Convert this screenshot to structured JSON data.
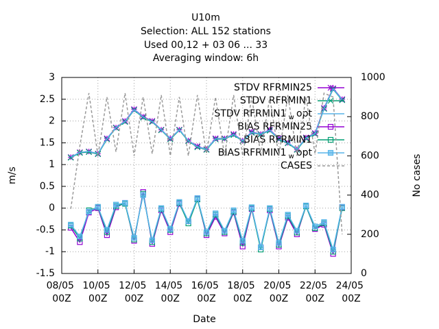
{
  "chart_data": {
    "type": "line",
    "title": [
      "U10m",
      "Selection: ALL    152 stations",
      "Used  00,12  + 03 06 ... 33",
      "Averaging window:  6h"
    ],
    "xlabel": "Date",
    "ylabel": "m/s",
    "y2label": "No cases",
    "xlim": [
      8,
      24
    ],
    "xticks": [
      {
        "value": 8,
        "label": "08/05 00Z"
      },
      {
        "value": 10,
        "label": "10/05 00Z"
      },
      {
        "value": 12,
        "label": "12/05 00Z"
      },
      {
        "value": 14,
        "label": "14/05 00Z"
      },
      {
        "value": 16,
        "label": "16/05 00Z"
      },
      {
        "value": 18,
        "label": "18/05 00Z"
      },
      {
        "value": 20,
        "label": "20/05 00Z"
      },
      {
        "value": 22,
        "label": "22/05 00Z"
      },
      {
        "value": 24,
        "label": "24/05 00Z"
      }
    ],
    "ylim": [
      -1.5,
      3
    ],
    "yticks": [
      -1.5,
      -1,
      -0.5,
      0,
      0.5,
      1,
      1.5,
      2,
      2.5,
      3
    ],
    "y2lim": [
      0,
      1000
    ],
    "y2ticks": [
      0,
      200,
      400,
      600,
      800,
      1000
    ],
    "grid": true,
    "legend": "top-right",
    "x": [
      8.5,
      9,
      9.5,
      10,
      10.5,
      11,
      11.5,
      12,
      12.5,
      13,
      13.5,
      14,
      14.5,
      15,
      15.5,
      16,
      16.5,
      17,
      17.5,
      18,
      18.5,
      19,
      19.5,
      20,
      20.5,
      21,
      21.5,
      22,
      22.5,
      23,
      23.5
    ],
    "series": [
      {
        "name": "STDV RFRMIN25",
        "color": "#9400d3",
        "marker": "star",
        "values": [
          1.17,
          1.28,
          1.3,
          1.25,
          1.6,
          1.85,
          2.0,
          2.27,
          2.1,
          2.0,
          1.8,
          1.6,
          1.8,
          1.55,
          1.42,
          1.35,
          1.6,
          1.6,
          1.7,
          1.55,
          1.75,
          1.7,
          1.8,
          1.6,
          1.5,
          1.35,
          1.62,
          1.72,
          2.3,
          2.75,
          2.5
        ]
      },
      {
        "name": "STDV RFRMIN1",
        "color": "#009e73",
        "marker": "cross",
        "values": [
          1.16,
          1.27,
          1.29,
          1.24,
          1.58,
          1.84,
          1.98,
          2.25,
          2.08,
          1.98,
          1.79,
          1.58,
          1.79,
          1.54,
          1.4,
          1.34,
          1.58,
          1.59,
          1.68,
          1.54,
          1.73,
          1.69,
          1.78,
          1.58,
          1.49,
          1.34,
          1.6,
          1.7,
          2.28,
          2.73,
          2.48
        ]
      },
      {
        "name": "STDV RFRMIN1 w opt",
        "color": "#56b4e9",
        "marker": "none",
        "values": [
          1.17,
          1.28,
          1.3,
          1.25,
          1.59,
          1.85,
          1.99,
          2.26,
          2.09,
          1.99,
          1.8,
          1.59,
          1.8,
          1.55,
          1.41,
          1.35,
          1.59,
          1.6,
          1.69,
          1.55,
          1.74,
          1.7,
          1.79,
          1.59,
          1.5,
          1.35,
          1.61,
          1.71,
          2.29,
          2.74,
          2.49
        ]
      },
      {
        "name": "BIAS RFRMIN25",
        "color": "#9400d3",
        "marker": "square",
        "values": [
          -0.45,
          -0.78,
          -0.1,
          0.0,
          -0.62,
          0.02,
          0.12,
          -0.75,
          0.37,
          -0.82,
          -0.05,
          -0.55,
          0.1,
          -0.3,
          0.22,
          -0.62,
          -0.2,
          -0.58,
          -0.1,
          -0.88,
          -0.02,
          -0.9,
          -0.05,
          -0.88,
          -0.22,
          -0.6,
          0.05,
          -0.48,
          -0.38,
          -1.05,
          0.02
        ]
      },
      {
        "name": "BIAS RFRMIN1",
        "color": "#009e73",
        "marker": "square",
        "values": [
          -0.4,
          -0.7,
          -0.05,
          0.02,
          -0.55,
          0.05,
          0.1,
          -0.72,
          0.33,
          -0.78,
          -0.02,
          -0.5,
          0.12,
          -0.35,
          0.2,
          -0.58,
          -0.15,
          -0.55,
          -0.08,
          -0.8,
          0.0,
          -0.95,
          -0.02,
          -0.84,
          -0.18,
          -0.56,
          0.04,
          -0.46,
          -0.35,
          -1.0,
          0.0
        ]
      },
      {
        "name": "BIAS RFRMIN1 w opt",
        "color": "#56b4e9",
        "marker": "square-filled",
        "values": [
          -0.38,
          -0.65,
          -0.08,
          0.03,
          -0.5,
          0.08,
          0.12,
          -0.68,
          0.3,
          -0.74,
          0.0,
          -0.48,
          0.14,
          -0.3,
          0.23,
          -0.55,
          -0.12,
          -0.52,
          -0.05,
          -0.75,
          0.02,
          -0.9,
          0.0,
          -0.8,
          -0.15,
          -0.52,
          0.06,
          -0.42,
          -0.32,
          -0.95,
          0.03
        ]
      },
      {
        "name": "CASES",
        "color": "#999999",
        "marker": "dashed",
        "axis": "y2",
        "values": [
          330,
          650,
          920,
          600,
          900,
          620,
          920,
          600,
          900,
          610,
          910,
          600,
          900,
          600,
          910,
          610,
          900,
          600,
          910,
          600,
          900,
          610,
          900,
          600,
          910,
          600,
          900,
          610,
          920,
          900,
          200
        ]
      }
    ]
  }
}
